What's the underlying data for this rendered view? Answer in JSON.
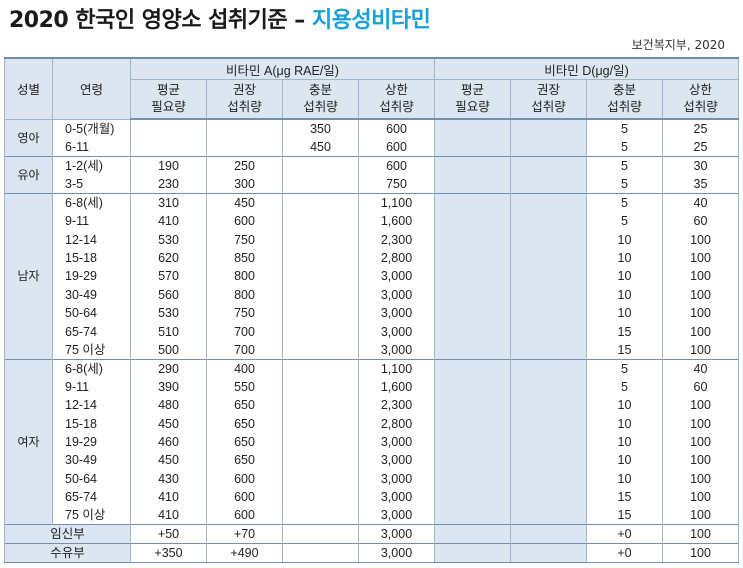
{
  "title": {
    "main": "2020 한국인 영양소 섭취기준 – ",
    "accent": "지용성비타민"
  },
  "source": "보건복지부, 2020",
  "headers": {
    "sex": "성별",
    "age": "연령",
    "vitA": "비타민 A(μg RAE/일)",
    "vitD": "비타민 D(μg/일)",
    "sub": [
      {
        "l1": "평균",
        "l2": "필요량"
      },
      {
        "l1": "권장",
        "l2": "섭취량"
      },
      {
        "l1": "충분",
        "l2": "섭취량"
      },
      {
        "l1": "상한",
        "l2": "섭취량"
      }
    ]
  },
  "groups": [
    {
      "label": "영아",
      "rows": [
        {
          "age": "0-5(개월)",
          "a": [
            "",
            "",
            "350",
            "600"
          ],
          "d": [
            "",
            "",
            "5",
            "25"
          ]
        },
        {
          "age": "6-11",
          "a": [
            "",
            "",
            "450",
            "600"
          ],
          "d": [
            "",
            "",
            "5",
            "25"
          ]
        }
      ]
    },
    {
      "label": "유아",
      "rows": [
        {
          "age": "1-2(세)",
          "a": [
            "190",
            "250",
            "",
            "600"
          ],
          "d": [
            "",
            "",
            "5",
            "30"
          ]
        },
        {
          "age": "3-5",
          "a": [
            "230",
            "300",
            "",
            "750"
          ],
          "d": [
            "",
            "",
            "5",
            "35"
          ]
        }
      ]
    },
    {
      "label": "남자",
      "rows": [
        {
          "age": "6-8(세)",
          "a": [
            "310",
            "450",
            "",
            "1,100"
          ],
          "d": [
            "",
            "",
            "5",
            "40"
          ]
        },
        {
          "age": "9-11",
          "a": [
            "410",
            "600",
            "",
            "1,600"
          ],
          "d": [
            "",
            "",
            "5",
            "60"
          ]
        },
        {
          "age": "12-14",
          "a": [
            "530",
            "750",
            "",
            "2,300"
          ],
          "d": [
            "",
            "",
            "10",
            "100"
          ]
        },
        {
          "age": "15-18",
          "a": [
            "620",
            "850",
            "",
            "2,800"
          ],
          "d": [
            "",
            "",
            "10",
            "100"
          ]
        },
        {
          "age": "19-29",
          "a": [
            "570",
            "800",
            "",
            "3,000"
          ],
          "d": [
            "",
            "",
            "10",
            "100"
          ]
        },
        {
          "age": "30-49",
          "a": [
            "560",
            "800",
            "",
            "3,000"
          ],
          "d": [
            "",
            "",
            "10",
            "100"
          ]
        },
        {
          "age": "50-64",
          "a": [
            "530",
            "750",
            "",
            "3,000"
          ],
          "d": [
            "",
            "",
            "10",
            "100"
          ]
        },
        {
          "age": "65-74",
          "a": [
            "510",
            "700",
            "",
            "3,000"
          ],
          "d": [
            "",
            "",
            "15",
            "100"
          ]
        },
        {
          "age": "75 이상",
          "a": [
            "500",
            "700",
            "",
            "3,000"
          ],
          "d": [
            "",
            "",
            "15",
            "100"
          ]
        }
      ]
    },
    {
      "label": "여자",
      "rows": [
        {
          "age": "6-8(세)",
          "a": [
            "290",
            "400",
            "",
            "1,100"
          ],
          "d": [
            "",
            "",
            "5",
            "40"
          ]
        },
        {
          "age": "9-11",
          "a": [
            "390",
            "550",
            "",
            "1,600"
          ],
          "d": [
            "",
            "",
            "5",
            "60"
          ]
        },
        {
          "age": "12-14",
          "a": [
            "480",
            "650",
            "",
            "2,300"
          ],
          "d": [
            "",
            "",
            "10",
            "100"
          ]
        },
        {
          "age": "15-18",
          "a": [
            "450",
            "650",
            "",
            "2,800"
          ],
          "d": [
            "",
            "",
            "10",
            "100"
          ]
        },
        {
          "age": "19-29",
          "a": [
            "460",
            "650",
            "",
            "3,000"
          ],
          "d": [
            "",
            "",
            "10",
            "100"
          ]
        },
        {
          "age": "30-49",
          "a": [
            "450",
            "650",
            "",
            "3,000"
          ],
          "d": [
            "",
            "",
            "10",
            "100"
          ]
        },
        {
          "age": "50-64",
          "a": [
            "430",
            "600",
            "",
            "3,000"
          ],
          "d": [
            "",
            "",
            "10",
            "100"
          ]
        },
        {
          "age": "65-74",
          "a": [
            "410",
            "600",
            "",
            "3,000"
          ],
          "d": [
            "",
            "",
            "15",
            "100"
          ]
        },
        {
          "age": "75 이상",
          "a": [
            "410",
            "600",
            "",
            "3,000"
          ],
          "d": [
            "",
            "",
            "15",
            "100"
          ]
        }
      ]
    }
  ],
  "special": [
    {
      "label": "임신부",
      "a": [
        "+50",
        "+70",
        "",
        "3,000"
      ],
      "d": [
        "",
        "",
        "+0",
        "100"
      ]
    },
    {
      "label": "수유부",
      "a": [
        "+350",
        "+490",
        "",
        "3,000"
      ],
      "d": [
        "",
        "",
        "+0",
        "100"
      ]
    }
  ]
}
